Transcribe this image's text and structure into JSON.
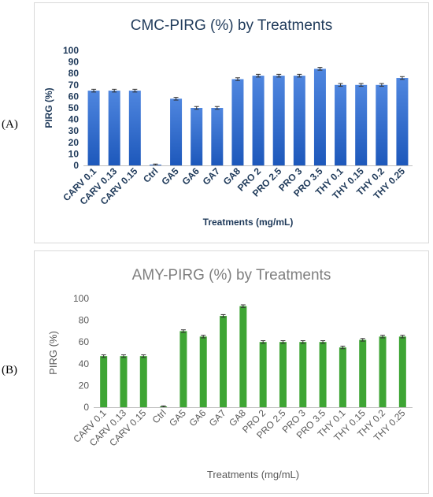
{
  "panels": [
    {
      "label": "(A)"
    },
    {
      "label": "(B)"
    }
  ],
  "chart_data": [
    {
      "type": "bar",
      "title": "CMC-PIRG (%) by Treatments",
      "xlabel": "Treatments (mg/mL)",
      "ylabel": "PIRG (%)",
      "ylim": [
        0,
        100
      ],
      "yticks": [
        0,
        10,
        20,
        30,
        40,
        50,
        60,
        70,
        80,
        90,
        100
      ],
      "categories": [
        "CARV 0.1",
        "CARV 0.13",
        "CARV 0.15",
        "Ctrl",
        "GA5",
        "GA6",
        "GA7",
        "GA8",
        "PRO 2",
        "PRO 2.5",
        "PRO 3",
        "PRO 3.5",
        "THY 0.1",
        "THY 0.15",
        "THY 0.2",
        "THY 0.25"
      ],
      "values": [
        65,
        65,
        65,
        0,
        58,
        50,
        50,
        75,
        78,
        78,
        78,
        84,
        70,
        70,
        70,
        76
      ],
      "error_bars": true,
      "grid": false,
      "colors": {
        "bar_top": "#4f86df",
        "bar_bottom": "#1d58bb",
        "title": "#1f3a5a",
        "axis_text": "#1f3a5a"
      }
    },
    {
      "type": "bar",
      "title": "AMY-PIRG (%) by Treatments",
      "xlabel": "Treatments (mg/mL)",
      "ylabel": "PIRG (%)",
      "ylim": [
        0,
        100
      ],
      "yticks": [
        0,
        20,
        40,
        60,
        80,
        100
      ],
      "categories": [
        "CARV 0.1",
        "CARV 0.13",
        "CARV 0.15",
        "Ctrl",
        "GA5",
        "GA6",
        "GA7",
        "GA8",
        "PRO 2",
        "PRO 2.5",
        "PRO 3",
        "PRO 3.5",
        "THY 0.1",
        "THY 0.15",
        "THY 0.2",
        "THY 0.25"
      ],
      "values": [
        47,
        47,
        47,
        0,
        70,
        65,
        84,
        93,
        60,
        60,
        60,
        60,
        55,
        62,
        65,
        65
      ],
      "error_bars": true,
      "grid": false,
      "colors": {
        "bar": "#3ea534",
        "title": "#7f7f7f",
        "axis_text": "#595959"
      }
    }
  ]
}
